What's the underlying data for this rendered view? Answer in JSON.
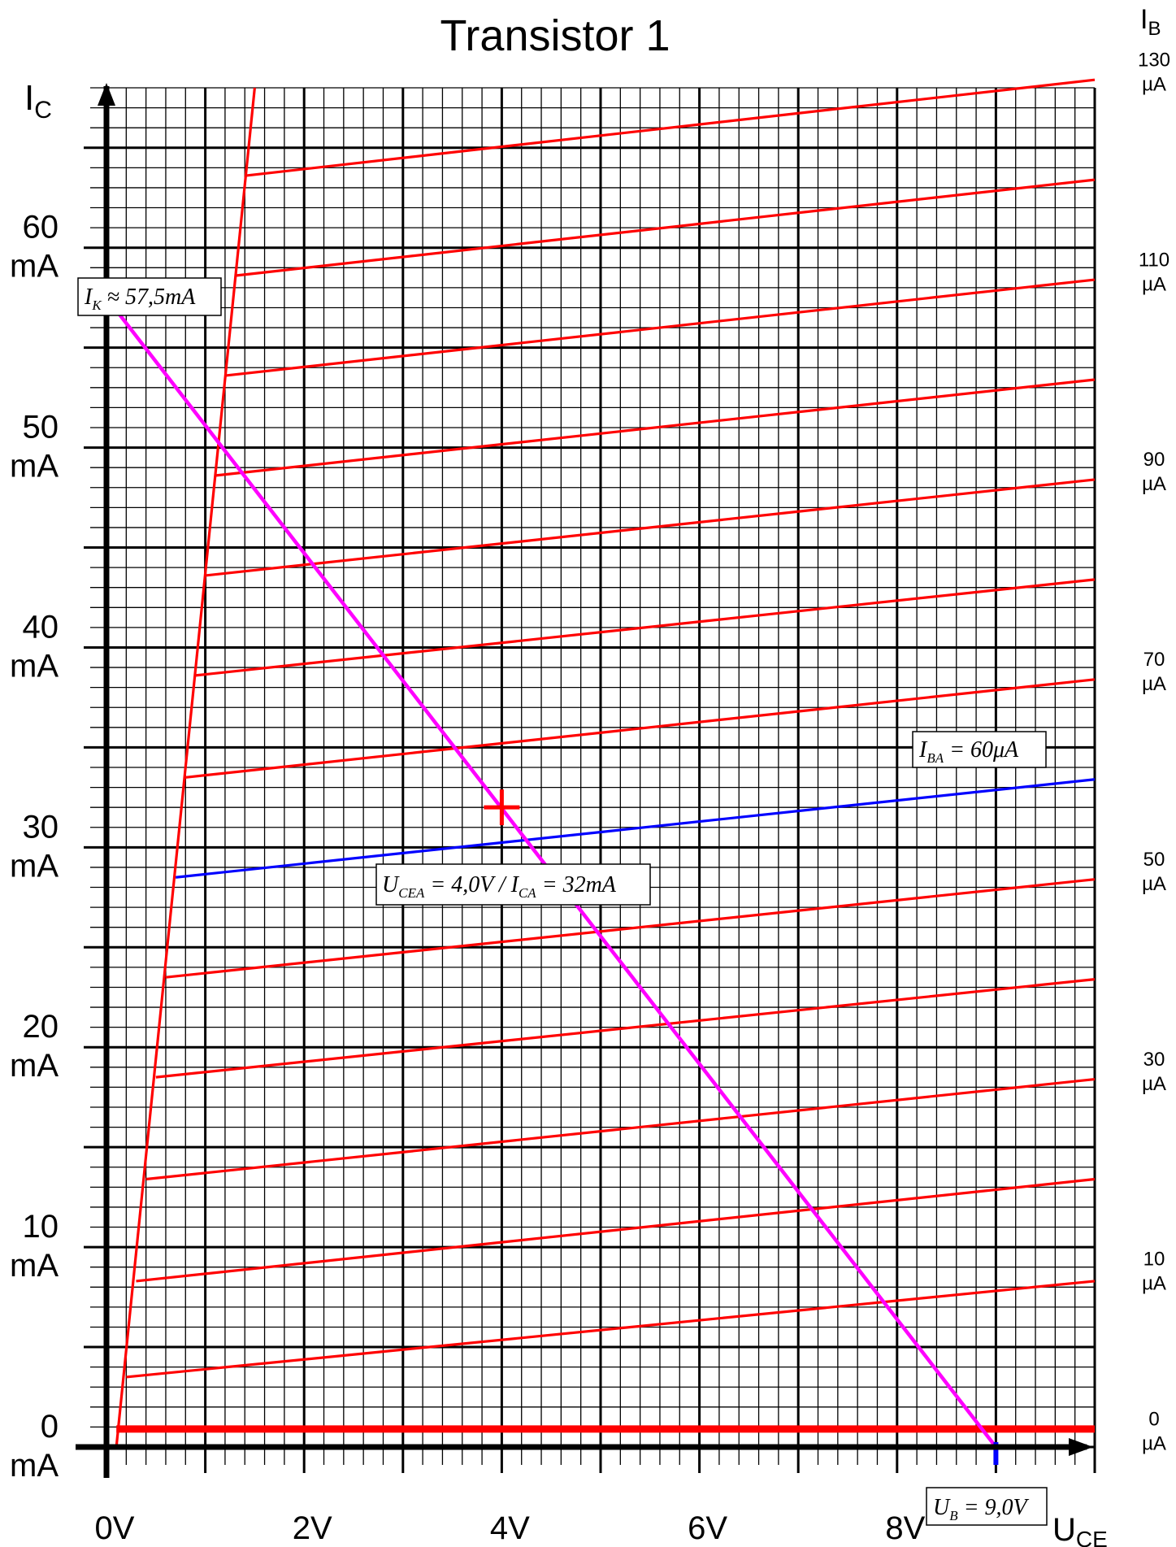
{
  "chart_data": {
    "type": "line",
    "title": "Transistor 1",
    "xlabel": {
      "main": "U",
      "sub": "CE"
    },
    "ylabel": {
      "main": "I",
      "sub": "C"
    },
    "ib_axis_label": {
      "main": "I",
      "sub": "B"
    },
    "xlim": [
      0,
      10
    ],
    "ylim": [
      0,
      68
    ],
    "grid": true,
    "x_ticks": [
      {
        "value": 0,
        "label": "0V"
      },
      {
        "value": 2,
        "label": "2V"
      },
      {
        "value": 4,
        "label": "4V"
      },
      {
        "value": 6,
        "label": "6V"
      },
      {
        "value": 8,
        "label": "8V"
      }
    ],
    "y_ticks": [
      {
        "value": 0,
        "num": "0",
        "unit": "mA"
      },
      {
        "value": 10,
        "num": "10",
        "unit": "mA"
      },
      {
        "value": 20,
        "num": "20",
        "unit": "mA"
      },
      {
        "value": 30,
        "num": "30",
        "unit": "mA"
      },
      {
        "value": 40,
        "num": "40",
        "unit": "mA"
      },
      {
        "value": 50,
        "num": "50",
        "unit": "mA"
      },
      {
        "value": 60,
        "num": "60",
        "unit": "mA"
      }
    ],
    "ib_labels": [
      {
        "value": 0,
        "num": "0",
        "unit": "µA"
      },
      {
        "value": 10,
        "num": "10",
        "unit": "µA"
      },
      {
        "value": 30,
        "num": "30",
        "unit": "µA"
      },
      {
        "value": 50,
        "num": "50",
        "unit": "µA"
      },
      {
        "value": 70,
        "num": "70",
        "unit": "µA"
      },
      {
        "value": 90,
        "num": "90",
        "unit": "µA"
      },
      {
        "value": 110,
        "num": "110",
        "unit": "µA"
      },
      {
        "value": 130,
        "num": "130",
        "unit": "µA"
      }
    ],
    "ib_to_ic_slope": 0.5,
    "saturation_line": {
      "bottom": [
        0.1,
        0
      ],
      "top": [
        1.5,
        68
      ],
      "color": "#ff0000"
    },
    "series": [
      {
        "ib": 0,
        "x": [
          0.1,
          10
        ],
        "y": [
          0.9,
          0.9
        ],
        "color": "#ff0000",
        "thick": true
      },
      {
        "ib": 10,
        "x": [
          0.2,
          10
        ],
        "y": [
          3.5,
          8.3
        ]
      },
      {
        "ib": 20,
        "x": [
          0.3,
          10
        ],
        "y": [
          8.3,
          13.4
        ]
      },
      {
        "ib": 30,
        "x": [
          0.4,
          10
        ],
        "y": [
          13.4,
          18.4
        ]
      },
      {
        "ib": 40,
        "x": [
          0.5,
          10
        ],
        "y": [
          18.5,
          23.4
        ]
      },
      {
        "ib": 50,
        "x": [
          0.6,
          10
        ],
        "y": [
          23.5,
          28.4
        ]
      },
      {
        "ib": 60,
        "x": [
          0.7,
          10
        ],
        "y": [
          28.5,
          33.4
        ],
        "color": "#0000ff"
      },
      {
        "ib": 70,
        "x": [
          0.8,
          10
        ],
        "y": [
          33.5,
          38.4
        ]
      },
      {
        "ib": 80,
        "x": [
          0.9,
          10
        ],
        "y": [
          38.6,
          43.4
        ]
      },
      {
        "ib": 90,
        "x": [
          1.0,
          10
        ],
        "y": [
          43.6,
          48.4
        ]
      },
      {
        "ib": 100,
        "x": [
          1.1,
          10
        ],
        "y": [
          48.6,
          53.4
        ]
      },
      {
        "ib": 110,
        "x": [
          1.2,
          10
        ],
        "y": [
          53.6,
          58.4
        ]
      },
      {
        "ib": 120,
        "x": [
          1.3,
          10
        ],
        "y": [
          58.6,
          63.4
        ]
      },
      {
        "ib": 130,
        "x": [
          1.4,
          10
        ],
        "y": [
          63.6,
          68.4
        ]
      }
    ],
    "load_line": {
      "x": [
        0,
        9.0
      ],
      "y": [
        57.5,
        0
      ],
      "color": "#ff00ff"
    },
    "operating_point": {
      "x": 4.0,
      "y": 32,
      "color": "#ff0000"
    },
    "supply_marker": {
      "x": 9.0,
      "y": 0,
      "color": "#0000ff"
    },
    "annotations": {
      "ik": {
        "sym": "I",
        "sub": "K",
        "rest": " ≈ 57,5mA"
      },
      "iba": {
        "sym": "I",
        "sub": "BA",
        "rest": " = 60μA"
      },
      "op": {
        "sym1": "U",
        "sub1": "CEA",
        "mid": " = 4,0V / ",
        "sym2": "I",
        "sub2": "CA",
        "rest": " = 32mA"
      },
      "ub": {
        "sym": "U",
        "sub": "B",
        "rest": " = 9,0V"
      }
    }
  }
}
